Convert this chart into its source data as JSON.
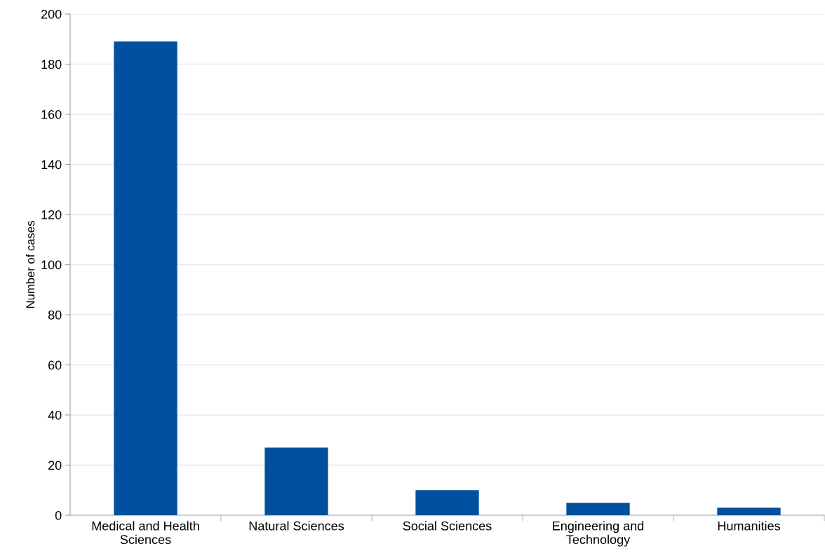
{
  "chart_data": {
    "type": "bar",
    "ylabel": "Number of cases",
    "categories": [
      "Medical and Health\nSciences",
      "Natural Sciences",
      "Social Sciences",
      "Engineering and\nTechnology",
      "Humanities"
    ],
    "values": [
      189,
      27,
      10,
      5,
      3
    ],
    "color": "#0050a0",
    "ylim": [
      0,
      200
    ],
    "yticks": [
      0,
      20,
      40,
      60,
      80,
      100,
      120,
      140,
      160,
      180,
      200
    ],
    "grid": "y"
  }
}
